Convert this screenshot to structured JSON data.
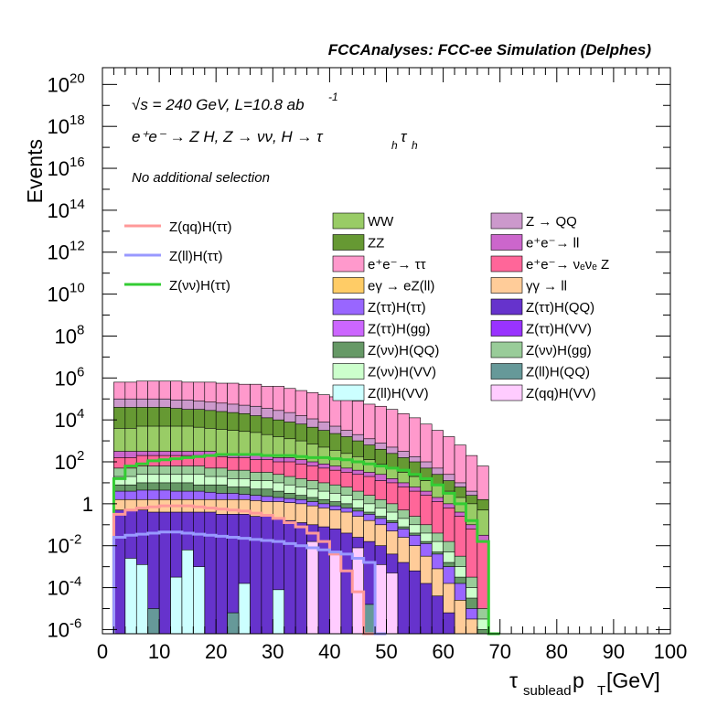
{
  "chart_data": {
    "type": "area",
    "title": "FCCAnalyses: FCC-ee Simulation (Delphes)",
    "xlabel": "τ",
    "xlabel_sub": "sublead",
    "xlabel_tail": " p",
    "xlabel_tail_sub": "T",
    "xlabel_unit": " [GeV]",
    "ylabel": "Events",
    "xlim": [
      0,
      100
    ],
    "ylim_log10": [
      -6.2,
      20.8
    ],
    "yscale": "log",
    "xticks": [
      "0",
      "10",
      "20",
      "30",
      "40",
      "50",
      "60",
      "70",
      "80",
      "90",
      "100"
    ],
    "ytick_exponents": [
      "-6",
      "-4",
      "-2",
      "",
      "2",
      "4",
      "6",
      "8",
      "10",
      "12",
      "14",
      "16",
      "18",
      "20"
    ],
    "ytick_one": "1",
    "ytick_base": "10",
    "annotations": {
      "energy_line": "√s = 240 GeV, L=10.8 ab",
      "energy_exp": "-1",
      "process_line": "e⁺e⁻ → Z H, Z → νν, H → τ",
      "process_sub1": "h",
      "process_tau2": "τ",
      "process_sub2": "h",
      "selection": "No additional selection"
    },
    "legend_lines": [
      {
        "name": "Z(qq)H(ττ)",
        "color": "#ff9999"
      },
      {
        "name": "Z(ll)H(ττ)",
        "color": "#9999ff"
      },
      {
        "name": "Z(νν)H(ττ)",
        "color": "#33cc33"
      }
    ],
    "legend_fills": [
      {
        "name": "WW",
        "color": "#99cc66"
      },
      {
        "name": "Z → QQ",
        "color": "#cc99cc"
      },
      {
        "name": "ZZ",
        "color": "#669933"
      },
      {
        "name": "e⁺e⁻→ ll",
        "color": "#cc66cc"
      },
      {
        "name": "e⁺e⁻→ ττ",
        "color": "#ff99cc"
      },
      {
        "name": "e⁺e⁻→ νₑνₑ Z",
        "color": "#ff6699"
      },
      {
        "name": "eγ → eZ(ll)",
        "color": "#ffcc66"
      },
      {
        "name": "γγ → ll",
        "color": "#ffcc99"
      },
      {
        "name": "Z(ττ)H(ττ)",
        "color": "#9966ff"
      },
      {
        "name": "Z(ττ)H(QQ)",
        "color": "#6633cc"
      },
      {
        "name": "Z(ττ)H(gg)",
        "color": "#cc66ff"
      },
      {
        "name": "Z(ττ)H(VV)",
        "color": "#9933ff"
      },
      {
        "name": "Z(νν)H(QQ)",
        "color": "#669966"
      },
      {
        "name": "Z(νν)H(gg)",
        "color": "#99cc99"
      },
      {
        "name": "Z(νν)H(VV)",
        "color": "#ccffcc"
      },
      {
        "name": "Z(ll)H(QQ)",
        "color": "#669999"
      },
      {
        "name": "Z(ll)H(VV)",
        "color": "#ccffff"
      },
      {
        "name": "Z(qq)H(VV)",
        "color": "#ffccff"
      }
    ],
    "stack_log10_top": [
      {
        "name": "e⁺e⁻→ ττ",
        "color": "#ff99cc",
        "values": [
          5.8,
          5.8,
          5.85,
          5.85,
          5.85,
          5.85,
          5.8,
          5.8,
          5.8,
          5.75,
          5.75,
          5.7,
          5.7,
          5.6,
          5.6,
          5.5,
          5.4,
          5.3,
          5.2,
          5.1,
          5.0,
          4.9,
          4.75,
          4.65,
          4.5,
          4.3,
          4.1,
          3.8,
          3.5,
          3.2,
          2.8,
          2.3,
          1.8
        ]
      },
      {
        "name": "Z → QQ",
        "color": "#cc99cc",
        "values": [
          5.0,
          5.0,
          5.0,
          5.0,
          5.0,
          4.95,
          4.95,
          4.9,
          4.85,
          4.8,
          4.75,
          4.7,
          4.65,
          4.55,
          4.45,
          4.35,
          4.2,
          4.05,
          3.9,
          3.7,
          3.5,
          3.3,
          3.1,
          2.9,
          2.7,
          2.5,
          2.25,
          2.0,
          1.7,
          1.4,
          1.0,
          0.6,
          0.2
        ]
      },
      {
        "name": "ZZ",
        "color": "#669933",
        "values": [
          4.6,
          4.6,
          4.6,
          4.6,
          4.6,
          4.55,
          4.5,
          4.5,
          4.45,
          4.4,
          4.35,
          4.3,
          4.2,
          4.1,
          4.0,
          3.9,
          3.8,
          3.65,
          3.5,
          3.35,
          3.2,
          3.0,
          2.8,
          2.6,
          2.4,
          2.2,
          2.0,
          1.7,
          1.4,
          1.1,
          0.8,
          0.4,
          0.2
        ]
      },
      {
        "name": "WW",
        "color": "#99cc66",
        "values": [
          3.6,
          3.6,
          3.7,
          3.7,
          3.7,
          3.7,
          3.7,
          3.65,
          3.6,
          3.55,
          3.5,
          3.45,
          3.4,
          3.3,
          3.2,
          3.1,
          3.0,
          2.85,
          2.7,
          2.55,
          2.4,
          2.25,
          2.1,
          1.9,
          1.7,
          1.5,
          1.3,
          1.1,
          0.9,
          0.6,
          0.3,
          0.0,
          -0.3
        ]
      },
      {
        "name": "e⁺e⁻→ ll",
        "color": "#cc66cc",
        "values": [
          2.5,
          2.5,
          2.5,
          2.5,
          2.5,
          2.5,
          2.5,
          2.5,
          2.5,
          2.4,
          2.4,
          2.4,
          2.3,
          2.3,
          2.2,
          2.2,
          2.1,
          2.0,
          1.9,
          1.8,
          1.7,
          1.6,
          1.5,
          1.4,
          1.2,
          1.0,
          0.8,
          0.6,
          0.3,
          0.0,
          -0.4,
          -1.0,
          -1.5
        ]
      },
      {
        "name": "e⁺e⁻→ νₑνₑ Z",
        "color": "#ff6699",
        "values": [
          2.2,
          2.2,
          2.3,
          2.3,
          2.3,
          2.3,
          2.3,
          2.3,
          2.3,
          2.25,
          2.2,
          2.2,
          2.1,
          2.1,
          2.0,
          2.0,
          1.9,
          1.8,
          1.7,
          1.6,
          1.5,
          1.4,
          1.3,
          1.1,
          1.0,
          0.8,
          0.6,
          0.4,
          0.1,
          -0.2,
          -0.6,
          -1.2,
          -1.8
        ]
      },
      {
        "name": "Z(νν)H(gg)",
        "color": "#99cc99",
        "values": [
          1.7,
          1.7,
          1.8,
          1.8,
          1.8,
          1.8,
          1.8,
          1.8,
          1.7,
          1.7,
          1.6,
          1.6,
          1.5,
          1.5,
          1.4,
          1.3,
          1.2,
          1.1,
          1.0,
          0.9,
          0.8,
          0.6,
          0.4,
          0.2,
          0.0,
          -0.3,
          -0.6,
          -1.0,
          -1.4,
          -1.8,
          -2.5,
          -3.5,
          -5.0
        ]
      },
      {
        "name": "Z(νν)H(VV)",
        "color": "#ccffcc",
        "values": [
          1.3,
          1.3,
          1.4,
          1.4,
          1.4,
          1.4,
          1.4,
          1.4,
          1.3,
          1.3,
          1.2,
          1.2,
          1.1,
          1.1,
          1.0,
          0.9,
          0.8,
          0.7,
          0.6,
          0.5,
          0.4,
          0.2,
          0.0,
          -0.2,
          -0.4,
          -0.7,
          -1.0,
          -1.4,
          -1.8,
          -2.3,
          -3.0,
          -4.0,
          -5.5
        ]
      },
      {
        "name": "Z(νν)H(QQ)",
        "color": "#669966",
        "values": [
          0.9,
          0.9,
          1.0,
          1.0,
          1.0,
          1.0,
          1.0,
          0.9,
          0.9,
          0.9,
          0.8,
          0.8,
          0.7,
          0.7,
          0.6,
          0.5,
          0.4,
          0.3,
          0.2,
          0.1,
          0.0,
          -0.2,
          -0.4,
          -0.6,
          -0.8,
          -1.1,
          -1.4,
          -1.8,
          -2.3,
          -2.8,
          -3.5,
          -4.5,
          -6.0
        ]
      },
      {
        "name": "Z(ττ)H(ττ)",
        "color": "#9966ff",
        "values": [
          0.6,
          0.6,
          0.65,
          0.65,
          0.65,
          0.6,
          0.6,
          0.6,
          0.55,
          0.5,
          0.5,
          0.45,
          0.4,
          0.35,
          0.3,
          0.25,
          0.2,
          0.1,
          0.0,
          -0.1,
          -0.2,
          -0.35,
          -0.5,
          -0.7,
          -0.9,
          -1.2,
          -1.5,
          -1.9,
          -2.4,
          -3.0,
          -3.8,
          -5.0,
          -6.2
        ]
      },
      {
        "name": "γγ → ll",
        "color": "#ffcc99",
        "values": [
          0.2,
          0.2,
          0.2,
          0.2,
          0.2,
          0.2,
          0.2,
          0.2,
          0.2,
          0.2,
          0.2,
          0.2,
          0.15,
          0.1,
          0.1,
          0.05,
          0.0,
          -0.1,
          -0.2,
          -0.3,
          -0.4,
          -0.6,
          -0.8,
          -1.0,
          -1.3,
          -1.6,
          -2.0,
          -2.5,
          -3.1,
          -3.8,
          -4.6,
          -5.5,
          -6.2
        ]
      },
      {
        "name": "Z(ττ)H(QQ)",
        "color": "#6633cc",
        "values": [
          -0.3,
          -0.3,
          -0.3,
          -0.4,
          -0.4,
          -0.4,
          -0.4,
          -0.4,
          -0.4,
          -0.5,
          -0.5,
          -0.5,
          -0.6,
          -0.6,
          -0.7,
          -0.8,
          -0.9,
          -1.0,
          -1.1,
          -1.2,
          -1.4,
          -1.6,
          -1.8,
          -2.0,
          -2.4,
          -2.8,
          -3.2,
          -3.8,
          -4.4,
          -5.2,
          -6.2,
          -6.2,
          -6.2
        ]
      }
    ],
    "sparse_bars": [
      {
        "name": "Z(ll)H(VV)",
        "color": "#ccffff",
        "x": [
          4,
          6,
          12,
          14,
          16,
          24,
          30
        ],
        "log10": [
          -2.6,
          -2.9,
          -3.5,
          -2.2,
          -3.0,
          -3.8,
          -4.1
        ]
      },
      {
        "name": "Z(qq)H(VV)",
        "color": "#ffccff",
        "x": [
          36,
          40,
          44,
          48,
          50
        ],
        "log10": [
          -1.8,
          -2.4,
          -2.1,
          -2.9,
          -3.3
        ]
      },
      {
        "name": "Z(ll)H(QQ)",
        "color": "#669999",
        "x": [
          8,
          22,
          46
        ],
        "log10": [
          -5.0,
          -5.2,
          -4.8
        ]
      }
    ],
    "signal_lines_log10": [
      {
        "name": "Z(νν)H(ττ)",
        "color": "#33cc33",
        "values": [
          1.2,
          1.8,
          1.9,
          2.05,
          2.1,
          2.15,
          2.2,
          2.25,
          2.3,
          2.35,
          2.35,
          2.35,
          2.35,
          2.3,
          2.3,
          2.3,
          2.25,
          2.2,
          2.2,
          2.15,
          2.1,
          2.0,
          1.9,
          1.8,
          1.7,
          1.6,
          1.4,
          1.2,
          0.9,
          0.5,
          0.0,
          -0.8,
          -1.8,
          -6.2
        ]
      },
      {
        "name": "Z(qq)H(ττ)",
        "color": "#ff9999",
        "values": [
          -0.5,
          -0.3,
          -0.2,
          -0.15,
          -0.1,
          -0.1,
          -0.1,
          -0.15,
          -0.2,
          -0.25,
          -0.3,
          -0.35,
          -0.45,
          -0.55,
          -0.7,
          -0.9,
          -1.1,
          -1.4,
          -1.8,
          -2.4,
          -3.2,
          -4.2,
          -6.2
        ]
      },
      {
        "name": "Z(ll)H(ττ)",
        "color": "#9999ff",
        "values": [
          -1.6,
          -1.5,
          -1.45,
          -1.4,
          -1.35,
          -1.35,
          -1.4,
          -1.45,
          -1.5,
          -1.55,
          -1.6,
          -1.65,
          -1.7,
          -1.75,
          -1.8,
          -1.9,
          -2.0,
          -2.1,
          -2.2,
          -2.3,
          -2.4,
          -2.6,
          -2.8,
          -6.2
        ]
      }
    ],
    "bin_width": 2,
    "x_start": 2
  }
}
